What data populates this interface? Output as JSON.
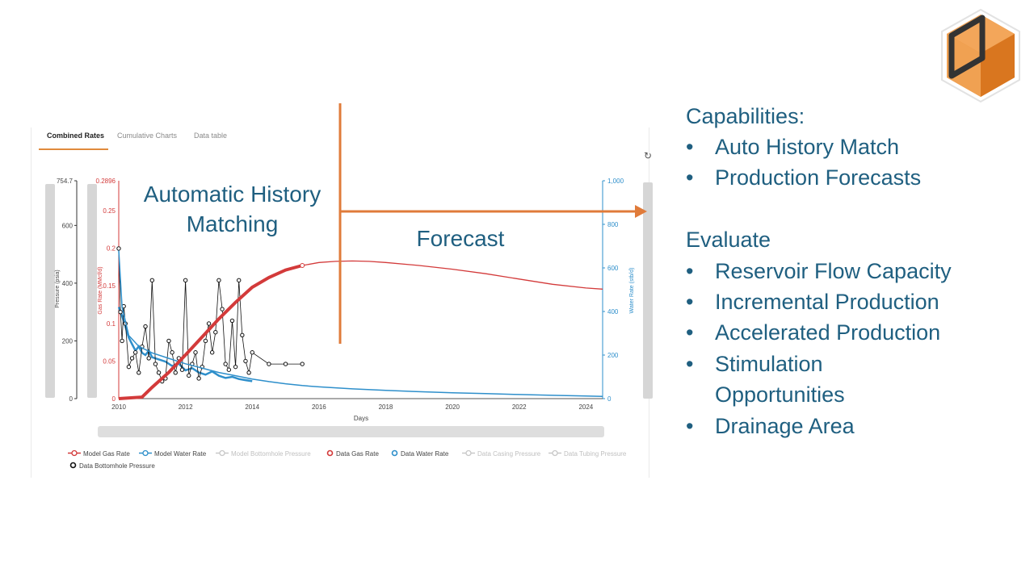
{
  "tabs": [
    {
      "label": "Combined Rates"
    },
    {
      "label": "Cumulative Charts"
    },
    {
      "label": "Data table"
    }
  ],
  "overlays": {
    "history_match_line1": "Automatic History",
    "history_match_line2": "Matching",
    "forecast": "Forecast"
  },
  "sidebar": {
    "capabilities_title": "Capabilities:",
    "capabilities": [
      "Auto History Match",
      "Production Forecasts"
    ],
    "evaluate_title": "Evaluate",
    "evaluate": [
      "Reservoir Flow Capacity",
      "Incremental Production",
      "Accelerated Production",
      "Stimulation",
      "Opportunities",
      "Drainage Area"
    ]
  },
  "colors": {
    "gas": "#d33a3a",
    "water": "#2e8fcb",
    "bhp": "#111111",
    "accent": "#e07b3a",
    "text_blue": "#1f5f80",
    "disabled": "#c8c8c8"
  },
  "chart_data": {
    "type": "line",
    "xlabel": "Days",
    "x_ticks": [
      "2010",
      "2012",
      "2014",
      "2016",
      "2018",
      "2020",
      "2022",
      "2024"
    ],
    "x_range": [
      2010,
      2024.5
    ],
    "axes": {
      "pressure": {
        "label": "Pressure (psia)",
        "ylim": [
          0,
          754.7
        ],
        "ticks": [
          "754.7",
          "600",
          "400",
          "200",
          "0"
        ]
      },
      "gas": {
        "label": "Gas Rate (MMcf/d)",
        "ylim": [
          0,
          0.2896
        ],
        "ticks": [
          "0.2896",
          "0.25",
          "0.2",
          "0.15",
          "0.1",
          "0.05",
          "0"
        ]
      },
      "water": {
        "label": "Water Rate (stb/d)",
        "ylim": [
          0,
          1000
        ],
        "ticks": [
          "1,000",
          "800",
          "600",
          "400",
          "200",
          "0"
        ]
      }
    },
    "series": [
      {
        "name": "Model Gas Rate",
        "axis": "gas",
        "x": [
          2010,
          2010.7,
          2011,
          2011.5,
          2012,
          2012.5,
          2013,
          2013.5,
          2014,
          2014.5,
          2015,
          2015.5,
          2016,
          2016.5,
          2017,
          2017.5,
          2018,
          2019,
          2020,
          2021,
          2022,
          2023,
          2024,
          2024.5
        ],
        "values": [
          0,
          0.002,
          0.015,
          0.035,
          0.058,
          0.082,
          0.106,
          0.128,
          0.148,
          0.161,
          0.171,
          0.177,
          0.181,
          0.1825,
          0.183,
          0.1825,
          0.181,
          0.177,
          0.172,
          0.166,
          0.159,
          0.152,
          0.147,
          0.1455
        ]
      },
      {
        "name": "Model Water Rate",
        "axis": "water",
        "x": [
          2010,
          2010.1,
          2010.3,
          2010.6,
          2011,
          2011.5,
          2012,
          2012.5,
          2013,
          2013.5,
          2014,
          2014.5,
          2015,
          2015.5,
          2016,
          2017,
          2018,
          2019,
          2020,
          2021,
          2022,
          2023,
          2024,
          2024.5
        ],
        "values": [
          680,
          420,
          290,
          240,
          210,
          185,
          160,
          140,
          120,
          105,
          90,
          78,
          68,
          60,
          54,
          45,
          38,
          32,
          27,
          23,
          19,
          15,
          12,
          10
        ]
      },
      {
        "name": "Model Bottomhole Pressure",
        "axis": "pressure",
        "x": [],
        "values": []
      },
      {
        "name": "Data Gas Rate",
        "axis": "gas",
        "x": [],
        "values": []
      },
      {
        "name": "Data Water Rate",
        "axis": "water",
        "x": [
          2010,
          2010.1,
          2010.2,
          2010.3,
          2010.4,
          2010.5,
          2010.6,
          2010.7,
          2010.8,
          2010.9,
          2011,
          2011.2,
          2011.4,
          2011.6,
          2011.8,
          2012,
          2012.2,
          2012.4,
          2012.6,
          2012.8,
          2013,
          2013.2,
          2013.4,
          2013.6,
          2013.8,
          2014
        ],
        "values": [
          420,
          380,
          330,
          280,
          250,
          220,
          240,
          210,
          200,
          220,
          190,
          180,
          170,
          150,
          160,
          130,
          140,
          120,
          110,
          125,
          105,
          95,
          100,
          90,
          85,
          80
        ]
      },
      {
        "name": "Data Casing Pressure",
        "axis": "pressure",
        "x": [],
        "values": []
      },
      {
        "name": "Data Tubing Pressure",
        "axis": "pressure",
        "x": [],
        "values": []
      },
      {
        "name": "Data Bottomhole Pressure",
        "axis": "pressure",
        "x": [
          2010,
          2010.05,
          2010.1,
          2010.15,
          2010.2,
          2010.3,
          2010.4,
          2010.5,
          2010.6,
          2010.7,
          2010.8,
          2010.9,
          2011,
          2011.1,
          2011.2,
          2011.3,
          2011.4,
          2011.5,
          2011.6,
          2011.7,
          2011.8,
          2011.9,
          2012,
          2012.1,
          2012.2,
          2012.3,
          2012.4,
          2012.5,
          2012.6,
          2012.7,
          2012.8,
          2012.9,
          2013,
          2013.1,
          2013.2,
          2013.3,
          2013.4,
          2013.5,
          2013.6,
          2013.7,
          2013.8,
          2013.9,
          2014,
          2014.5,
          2015,
          2015.5
        ],
        "values": [
          520,
          300,
          200,
          320,
          260,
          110,
          140,
          160,
          90,
          180,
          250,
          140,
          410,
          120,
          90,
          60,
          70,
          200,
          160,
          90,
          140,
          100,
          410,
          80,
          120,
          160,
          70,
          110,
          200,
          260,
          160,
          230,
          410,
          310,
          120,
          100,
          270,
          110,
          410,
          220,
          130,
          90,
          160,
          120,
          120,
          120
        ]
      }
    ],
    "legend": [
      "Model Gas Rate",
      "Model Water Rate",
      "Model Bottomhole Pressure",
      "Data Gas Rate",
      "Data Water Rate",
      "Data Casing Pressure",
      "Data Tubing Pressure",
      "Data Bottomhole Pressure"
    ]
  }
}
